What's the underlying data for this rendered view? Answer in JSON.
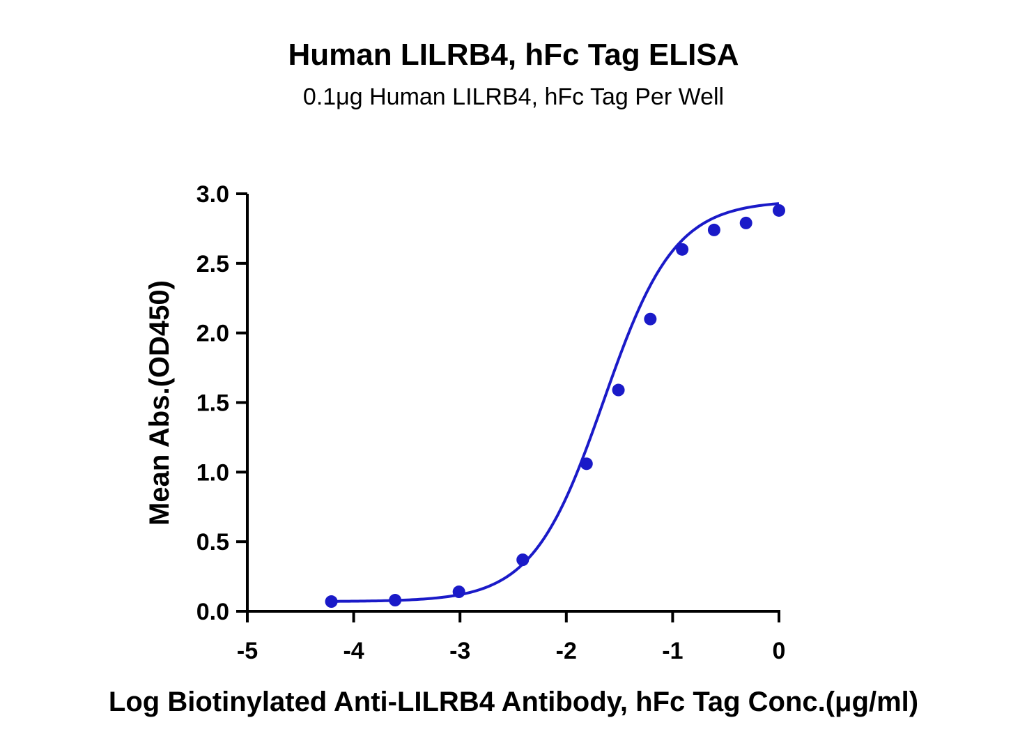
{
  "chart_data": {
    "type": "scatter",
    "title": "Human LILRB4, hFc Tag ELISA",
    "subtitle": "0.1μg Human LILRB4, hFc Tag Per Well",
    "xlabel": "Log Biotinylated Anti-LILRB4 Antibody, hFc Tag Conc.(μg/ml)",
    "ylabel": "Mean Abs.(OD450)",
    "xlim": [
      -5,
      0
    ],
    "ylim": [
      0,
      3.0
    ],
    "x_ticks": [
      -5,
      -4,
      -3,
      -2,
      -1,
      0
    ],
    "x_tick_labels": [
      "-5",
      "-4",
      "-3",
      "-2",
      "-1",
      "0"
    ],
    "y_ticks": [
      0,
      0.5,
      1.0,
      1.5,
      2.0,
      2.5,
      3.0
    ],
    "y_tick_labels": [
      "0.0",
      "0.5",
      "1.0",
      "1.5",
      "2.0",
      "2.5",
      "3.0"
    ],
    "grid": false,
    "series_color": "#1a1ac8",
    "fit": {
      "model": "4PL",
      "bottom": 0.07,
      "top": 2.95,
      "logEC50": -1.65,
      "hill": 1.3
    },
    "x": [
      -4.21,
      -3.61,
      -3.01,
      -2.41,
      -1.81,
      -1.51,
      -1.21,
      -0.91,
      -0.61,
      -0.31,
      0.0
    ],
    "y": [
      0.07,
      0.08,
      0.14,
      0.37,
      1.06,
      1.59,
      2.1,
      2.6,
      2.74,
      2.79,
      2.88
    ]
  }
}
